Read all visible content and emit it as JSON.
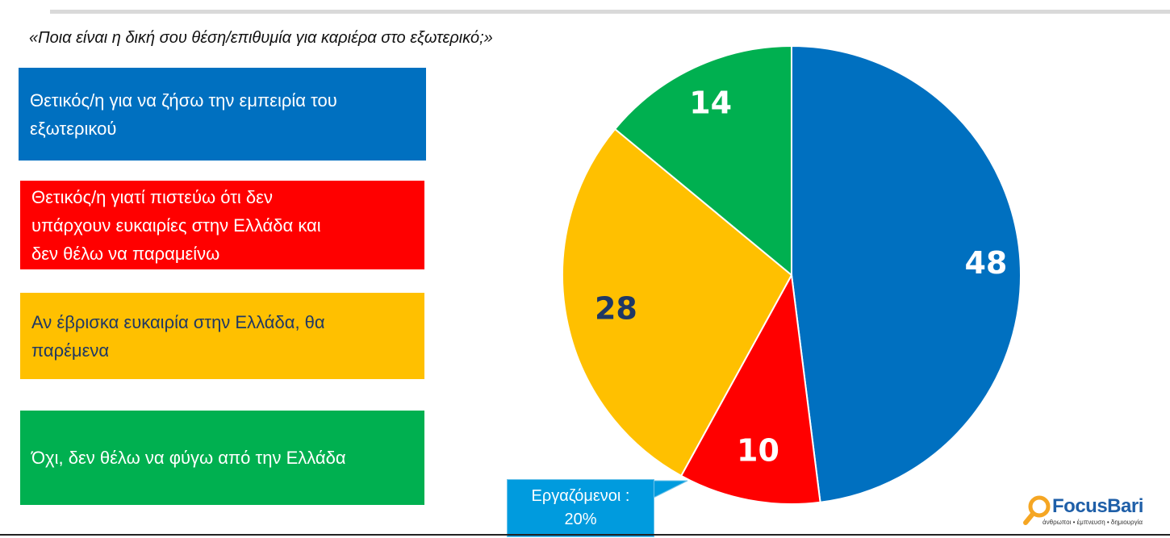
{
  "question": "«Ποια είναι η δική σου θέση/επιθυμία για καριέρα στο εξωτερικό;»",
  "colors": {
    "blue": "#0070c0",
    "red": "#ff0000",
    "yellow": "#ffc000",
    "green": "#00b050",
    "callout": "#009bde"
  },
  "chart_data": {
    "type": "pie",
    "title": "«Ποια είναι η δική σου θέση/επιθυμία για καριέρα στο εξωτερικό;»",
    "slices": [
      {
        "label_lines": [
          "Θετικός/η για να ζήσω την εμπειρία του",
          "εξωτερικού"
        ],
        "value": 48,
        "color": "#0070c0",
        "text_color": "#ffffff",
        "label_color": "#ffffff"
      },
      {
        "label_lines": [
          "Θετικός/η γιατί πιστεύω ότι δεν",
          "υπάρχουν ευκαιρίες στην Ελλάδα και",
          "δεν θέλω να παραμείνω"
        ],
        "value": 10,
        "color": "#ff0000",
        "text_color": "#ffffff",
        "label_color": "#ffffff"
      },
      {
        "label_lines": [
          "Αν έβρισκα ευκαιρία στην Ελλάδα, θα",
          "παρέμενα"
        ],
        "value": 28,
        "color": "#ffc000",
        "text_color": "#1f3864",
        "label_color": "#1f3864"
      },
      {
        "label_lines": [
          "Όχι, δεν θέλω να φύγω από την Ελλάδα"
        ],
        "value": 14,
        "color": "#00b050",
        "text_color": "#ffffff",
        "label_color": "#ffffff"
      }
    ]
  },
  "callout": {
    "line1": "Εργαζόμενοι :",
    "line2": "20%"
  },
  "logo": {
    "name": "FocusBari",
    "tagline": "άνθρωποι • έμπνευση • δημιουργία",
    "icon": "magnifier-icon"
  }
}
